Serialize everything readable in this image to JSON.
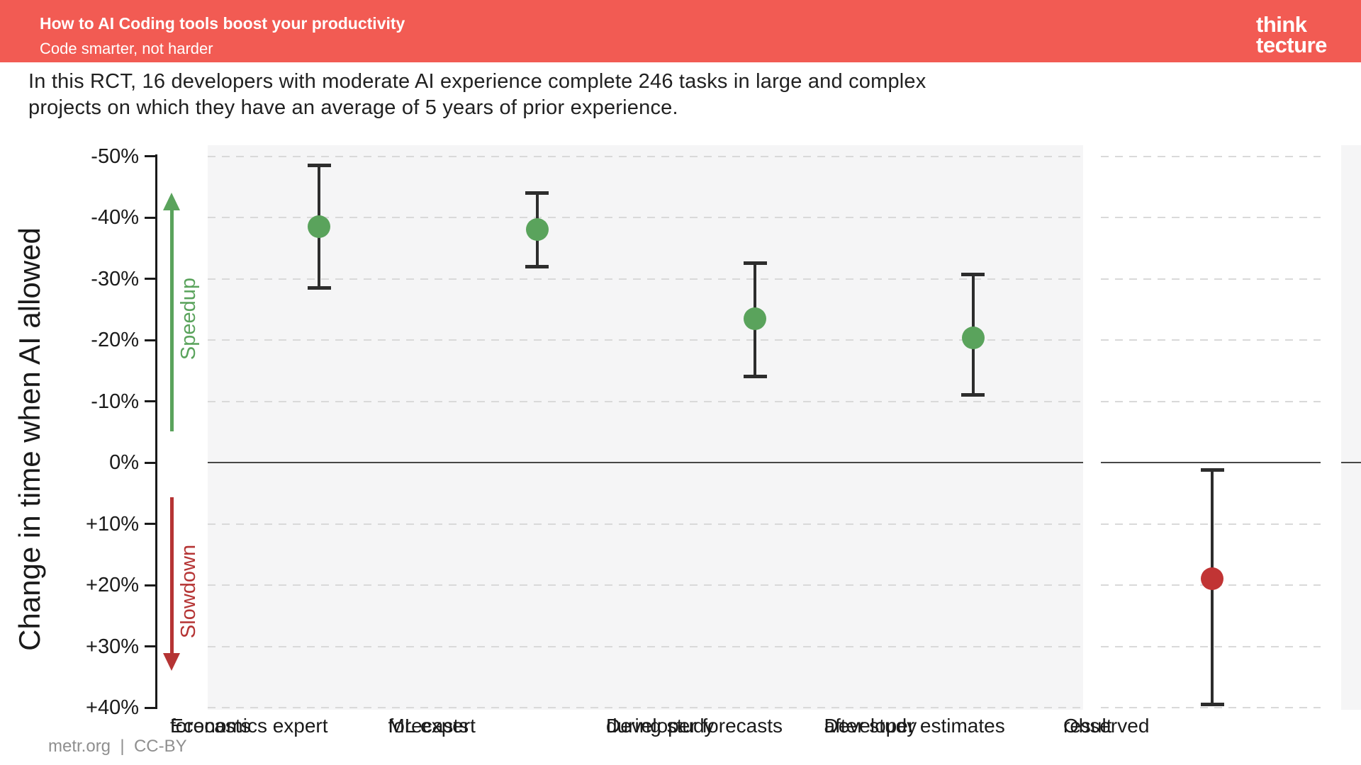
{
  "header": {
    "title": "How to AI Coding tools boost your productivity",
    "subtitle": "Code smarter, not harder",
    "logo_line1": "think",
    "logo_line2": "tecture"
  },
  "intro": {
    "line1": "In this RCT, 16 developers with moderate AI experience complete 246 tasks in large and complex",
    "line2": "projects on which they have an average of 5 years of prior experience."
  },
  "palette": {
    "header_background": "#f25b53",
    "green": "#5aa35c",
    "red": "#b53434",
    "observed_red": "#c13434",
    "errorbar": "#2d2d2d",
    "panel_gray": "#f5f5f6",
    "gridline_gray": "#d9d9d9"
  },
  "chart_data": {
    "type": "scatter",
    "title": "",
    "ylabel": "Change in time when AI allowed",
    "xlabel": "",
    "ylim": [
      -50,
      40
    ],
    "grid": "dashed horizontal",
    "zero_line": true,
    "y_axis": {
      "unit": "percent change in completion time",
      "ticks": [
        {
          "value": -50,
          "label": "-50%"
        },
        {
          "value": -40,
          "label": "-40%"
        },
        {
          "value": -30,
          "label": "-30%"
        },
        {
          "value": -20,
          "label": "-20%"
        },
        {
          "value": -10,
          "label": "-10%"
        },
        {
          "value": 0,
          "label": "0%"
        },
        {
          "value": 10,
          "label": "+10%"
        },
        {
          "value": 20,
          "label": "+20%"
        },
        {
          "value": 30,
          "label": "+30%"
        },
        {
          "value": 40,
          "label": "+40%"
        }
      ],
      "annotations": [
        {
          "label": "Speedup",
          "direction": "up",
          "color": "green"
        },
        {
          "label": "Slowdown",
          "direction": "down",
          "color": "red"
        }
      ]
    },
    "points": [
      {
        "category": [
          "Economics expert",
          "forecasts"
        ],
        "value": -38.5,
        "ci": [
          -48.5,
          -28.5
        ],
        "color": "green"
      },
      {
        "category": [
          "ML expert",
          "forecasts"
        ],
        "value": -38.0,
        "ci": [
          -44.0,
          -32.0
        ],
        "color": "green"
      },
      {
        "category": [
          "Developer forecasts",
          "during study"
        ],
        "value": -23.5,
        "ci": [
          -32.5,
          -14.0
        ],
        "color": "green"
      },
      {
        "category": [
          "Developer estimates",
          "after study"
        ],
        "value": -20.3,
        "ci": [
          -30.7,
          -11.0
        ],
        "color": "green"
      },
      {
        "category": [
          "Observed",
          "result"
        ],
        "value": 19.0,
        "ci": [
          1.2,
          39.5
        ],
        "color": "observed_red"
      }
    ]
  },
  "footer": {
    "text": "metr.org  |  CC-BY"
  }
}
